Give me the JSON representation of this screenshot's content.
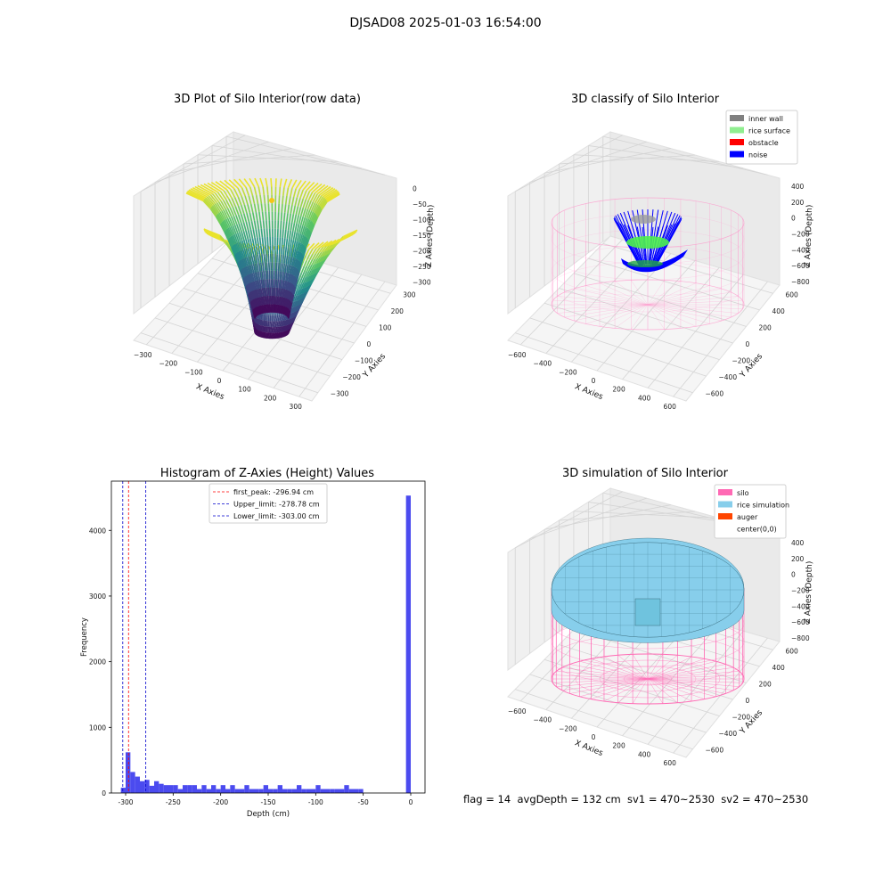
{
  "figure": {
    "title": "DJSAD08 2025-01-03 16:54:00",
    "footer": "flag = 14  avgDepth = 132 cm  sv1 = 470~2530  sv2 = 470~2530"
  },
  "chart_data": [
    {
      "type": "surface3d",
      "title": "3D Plot of Silo Interior(row data)",
      "xlabel": "X Axies",
      "ylabel": "Y Axies",
      "zlabel": "Z Axies (Depth)",
      "x_ticks": [
        "−300",
        "−200",
        "−100",
        "0",
        "100",
        "200",
        "300"
      ],
      "y_ticks": [
        "−300",
        "−200",
        "−100",
        "0",
        "100",
        "200",
        "300"
      ],
      "z_ticks": [
        "0",
        "−50",
        "−100",
        "−150",
        "−200",
        "−250",
        "−300"
      ],
      "xlim": [
        -300,
        300
      ],
      "ylim": [
        -300,
        300
      ],
      "zlim": [
        -320,
        10
      ],
      "colormap": "viridis",
      "marker_color": "#f5c518"
    },
    {
      "type": "scatter3d",
      "title": "3D classify of Silo Interior",
      "xlabel": "X Axies",
      "ylabel": "Y Axies",
      "zlabel": "Z Axies (Depth)",
      "x_ticks": [
        "−600",
        "−400",
        "−200",
        "0",
        "200",
        "400",
        "600"
      ],
      "y_ticks": [
        "−600",
        "−400",
        "−200",
        "0",
        "200",
        "400",
        "600"
      ],
      "z_ticks": [
        "400",
        "200",
        "0",
        "−200",
        "−400",
        "−600",
        "−800"
      ],
      "legend": [
        {
          "label": "inner wall",
          "color": "#808080"
        },
        {
          "label": "rice surface",
          "color": "#90ee90"
        },
        {
          "label": "obstacle",
          "color": "#ff0000"
        },
        {
          "label": "noise",
          "color": "#0000ff"
        }
      ],
      "wire_color": "#ff8ec8"
    },
    {
      "type": "bar",
      "title": "Histogram of Z-Axies (Height) Values",
      "xlabel": "Depth (cm)",
      "ylabel": "Frequency",
      "xlim": [
        -315,
        15
      ],
      "ylim": [
        0,
        4750
      ],
      "x_ticks": [
        -300,
        -250,
        -200,
        -150,
        -100,
        -50,
        0
      ],
      "y_ticks": [
        0,
        1000,
        2000,
        3000,
        4000
      ],
      "bar_color": "#4b4bef",
      "bin_width": 5,
      "bins": [
        {
          "x": -305,
          "v": 80
        },
        {
          "x": -300,
          "v": 620
        },
        {
          "x": -295,
          "v": 320
        },
        {
          "x": -290,
          "v": 250
        },
        {
          "x": -285,
          "v": 180
        },
        {
          "x": -280,
          "v": 200
        },
        {
          "x": -275,
          "v": 110
        },
        {
          "x": -270,
          "v": 180
        },
        {
          "x": -265,
          "v": 140
        },
        {
          "x": -260,
          "v": 120
        },
        {
          "x": -255,
          "v": 120
        },
        {
          "x": -250,
          "v": 120
        },
        {
          "x": -245,
          "v": 60
        },
        {
          "x": -240,
          "v": 120
        },
        {
          "x": -235,
          "v": 120
        },
        {
          "x": -230,
          "v": 120
        },
        {
          "x": -225,
          "v": 60
        },
        {
          "x": -220,
          "v": 120
        },
        {
          "x": -215,
          "v": 60
        },
        {
          "x": -210,
          "v": 120
        },
        {
          "x": -205,
          "v": 60
        },
        {
          "x": -200,
          "v": 120
        },
        {
          "x": -195,
          "v": 60
        },
        {
          "x": -190,
          "v": 120
        },
        {
          "x": -185,
          "v": 60
        },
        {
          "x": -180,
          "v": 60
        },
        {
          "x": -175,
          "v": 120
        },
        {
          "x": -170,
          "v": 60
        },
        {
          "x": -165,
          "v": 60
        },
        {
          "x": -160,
          "v": 60
        },
        {
          "x": -155,
          "v": 120
        },
        {
          "x": -150,
          "v": 60
        },
        {
          "x": -145,
          "v": 60
        },
        {
          "x": -140,
          "v": 120
        },
        {
          "x": -135,
          "v": 60
        },
        {
          "x": -130,
          "v": 60
        },
        {
          "x": -125,
          "v": 60
        },
        {
          "x": -120,
          "v": 120
        },
        {
          "x": -115,
          "v": 60
        },
        {
          "x": -110,
          "v": 60
        },
        {
          "x": -105,
          "v": 60
        },
        {
          "x": -100,
          "v": 120
        },
        {
          "x": -95,
          "v": 60
        },
        {
          "x": -90,
          "v": 60
        },
        {
          "x": -85,
          "v": 60
        },
        {
          "x": -80,
          "v": 60
        },
        {
          "x": -75,
          "v": 60
        },
        {
          "x": -70,
          "v": 120
        },
        {
          "x": -65,
          "v": 60
        },
        {
          "x": -60,
          "v": 60
        },
        {
          "x": -55,
          "v": 60
        },
        {
          "x": -5,
          "v": 4530
        }
      ],
      "vlines": [
        {
          "label": "first_peak: -296.94 cm",
          "x": -296.94,
          "color": "#ff0000"
        },
        {
          "label": "Upper_limit: -278.78 cm",
          "x": -278.78,
          "color": "#0000cc"
        },
        {
          "label": "Lower_limit: -303.00 cm",
          "x": -303.0,
          "color": "#0000cc"
        }
      ]
    },
    {
      "type": "surface3d",
      "title": "3D simulation of Silo Interior",
      "xlabel": "X Axies",
      "ylabel": "Y Axies",
      "zlabel": "Z Axies (Depth)",
      "x_ticks": [
        "−600",
        "−400",
        "−200",
        "0",
        "200",
        "400",
        "600"
      ],
      "y_ticks": [
        "−600",
        "−400",
        "−200",
        "0",
        "200",
        "400",
        "600"
      ],
      "z_ticks": [
        "400",
        "200",
        "0",
        "−200",
        "−400",
        "−600",
        "−800"
      ],
      "legend": [
        {
          "label": "silo",
          "color": "#ff69b4"
        },
        {
          "label": "rice simulation",
          "color": "#87ceeb"
        },
        {
          "label": "auger",
          "color": "#ff4500"
        },
        {
          "label": "center(0,0)",
          "color": "#ffffff"
        }
      ],
      "wire_color": "#ff69b4",
      "surface_color": "#87ceeb"
    }
  ]
}
